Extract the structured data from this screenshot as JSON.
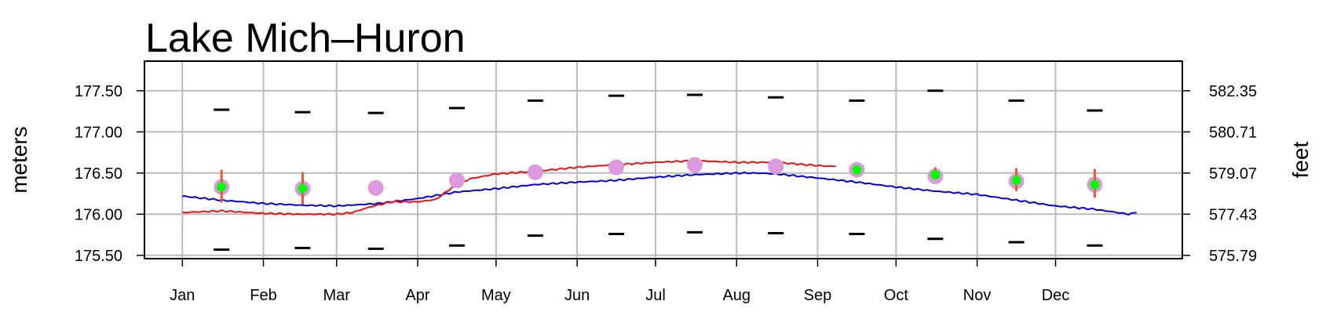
{
  "chart_data": {
    "type": "line",
    "title": "Lake Mich–Huron",
    "ylabel_left": "meters",
    "ylabel_right": "feet",
    "categories": [
      "Jan",
      "Feb",
      "Mar",
      "Apr",
      "May",
      "Jun",
      "Jul",
      "Aug",
      "Sep",
      "Oct",
      "Nov",
      "Dec"
    ],
    "left_ticks": [
      "175.50",
      "176.00",
      "176.50",
      "177.00",
      "177.50"
    ],
    "left_tick_values": [
      175.5,
      176.0,
      176.5,
      177.0,
      177.5
    ],
    "right_ticks": [
      "575.79",
      "577.43",
      "579.07",
      "580.71",
      "582.35"
    ],
    "ylim": [
      175.46,
      177.86
    ],
    "xlim_days": [
      -14.5,
      382.5
    ],
    "grid": true,
    "colors": {
      "series_blue": "#0000dd",
      "series_red": "#ee1111",
      "average": "#dd99dd",
      "forecast": "#00ff00",
      "range_bar": "#ee5533",
      "extreme": "#000000",
      "grid": "#bbbbbb"
    },
    "series": [
      {
        "color": "#0000dd",
        "x": [
          0,
          15,
          31,
          45,
          59,
          75,
          90,
          105,
          120,
          135,
          151,
          165,
          181,
          196,
          212,
          220,
          227,
          243,
          258,
          273,
          288,
          304,
          319,
          334,
          349,
          362,
          365
        ],
        "y": [
          176.22,
          176.17,
          176.13,
          176.11,
          176.1,
          176.13,
          176.19,
          176.27,
          176.31,
          176.36,
          176.39,
          176.41,
          176.45,
          176.48,
          176.5,
          176.5,
          176.49,
          176.44,
          176.39,
          176.33,
          176.28,
          176.24,
          176.17,
          176.1,
          176.06,
          176.0,
          176.02
        ]
      },
      {
        "color": "#ee1111",
        "x": [
          0,
          15,
          31,
          45,
          59,
          65,
          72,
          80,
          90,
          97,
          103,
          110,
          120,
          135,
          151,
          165,
          181,
          196,
          212,
          227,
          243,
          250
        ],
        "y": [
          176.02,
          176.04,
          176.01,
          176.0,
          176.0,
          176.02,
          176.09,
          176.15,
          176.15,
          176.18,
          176.32,
          176.43,
          176.49,
          176.52,
          176.57,
          176.6,
          176.63,
          176.65,
          176.63,
          176.63,
          176.59,
          176.58
        ]
      }
    ],
    "monthly_average": [
      176.33,
      176.31,
      176.32,
      176.41,
      176.51,
      176.57,
      176.6,
      176.58,
      176.54,
      176.46,
      176.4,
      176.36
    ],
    "monthly_forecast": [
      {
        "month": "Jan",
        "value": 176.33,
        "low": 176.14,
        "high": 176.54
      },
      {
        "month": "Feb",
        "value": 176.31,
        "low": 176.12,
        "high": 176.51
      },
      {
        "month": "Sep",
        "value": 176.54,
        "low": 176.53,
        "high": 176.55
      },
      {
        "month": "Oct",
        "value": 176.48,
        "low": 176.43,
        "high": 176.57
      },
      {
        "month": "Nov",
        "value": 176.41,
        "low": 176.28,
        "high": 176.56
      },
      {
        "month": "Dec",
        "value": 176.36,
        "low": 176.2,
        "high": 176.55
      }
    ],
    "monthly_max": [
      177.27,
      177.24,
      177.23,
      177.29,
      177.38,
      177.44,
      177.45,
      177.42,
      177.38,
      177.5,
      177.38,
      177.26
    ],
    "monthly_min": [
      175.57,
      175.59,
      175.58,
      175.62,
      175.74,
      175.76,
      175.78,
      175.77,
      175.76,
      175.7,
      175.66,
      175.62
    ]
  }
}
